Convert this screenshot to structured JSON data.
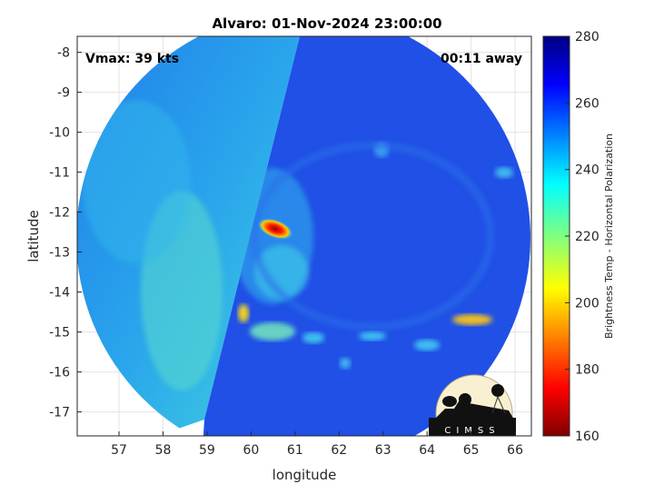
{
  "title": "Alvaro: 01-Nov-2024 23:00:00",
  "vmax_label": "Vmax: 39 kts",
  "time_label": "00:11 away",
  "x_axis": {
    "label": "longitude",
    "ticks": [
      "57",
      "58",
      "59",
      "60",
      "61",
      "62",
      "63",
      "64",
      "65",
      "66"
    ],
    "range": [
      56.05,
      66.37
    ]
  },
  "y_axis": {
    "label": "latitude",
    "ticks": [
      "-8",
      "-9",
      "-10",
      "-11",
      "-12",
      "-13",
      "-14",
      "-15",
      "-16",
      "-17"
    ],
    "range": [
      -17.6,
      -7.6
    ]
  },
  "colorbar": {
    "label": "Brightness Temp - Horizontal Polarization",
    "ticks": [
      "280",
      "260",
      "240",
      "220",
      "200",
      "180",
      "160"
    ],
    "range": [
      160,
      280
    ],
    "colormap": "jet"
  },
  "logo": {
    "text": "CIMSS"
  },
  "colors": {
    "swath_left": "#2a8fe8",
    "swath_right": "#1e46e0",
    "warm_core": "#d01010"
  }
}
